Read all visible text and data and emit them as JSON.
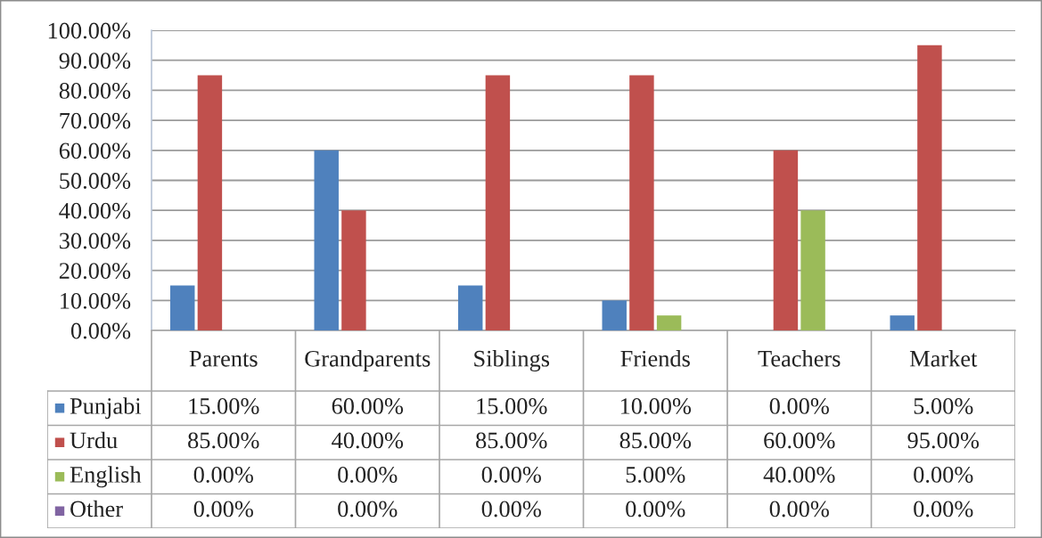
{
  "chart_data": {
    "type": "bar",
    "categories": [
      "Parents",
      "Grandparents",
      "Siblings",
      "Friends",
      "Teachers",
      "Market"
    ],
    "series": [
      {
        "name": "Punjabi",
        "color": "#4f81bd",
        "values": [
          15,
          60,
          15,
          10,
          0,
          5
        ],
        "value_labels": [
          "15.00%",
          "60.00%",
          "15.00%",
          "10.00%",
          "0.00%",
          "5.00%"
        ]
      },
      {
        "name": "Urdu",
        "color": "#c0504d",
        "values": [
          85,
          40,
          85,
          85,
          60,
          95
        ],
        "value_labels": [
          "85.00%",
          "40.00%",
          "85.00%",
          "85.00%",
          "60.00%",
          "95.00%"
        ]
      },
      {
        "name": "English",
        "color": "#9bbb59",
        "values": [
          0,
          0,
          0,
          5,
          40,
          0
        ],
        "value_labels": [
          "0.00%",
          "0.00%",
          "0.00%",
          "5.00%",
          "40.00%",
          "0.00%"
        ]
      },
      {
        "name": "Other",
        "color": "#8064a2",
        "values": [
          0,
          0,
          0,
          0,
          0,
          0
        ],
        "value_labels": [
          "0.00%",
          "0.00%",
          "0.00%",
          "0.00%",
          "0.00%",
          "0.00%"
        ]
      }
    ],
    "ylim": [
      0,
      100
    ],
    "yticks": [
      {
        "value": 0,
        "label": "0.00%"
      },
      {
        "value": 10,
        "label": "10.00%"
      },
      {
        "value": 20,
        "label": "20.00%"
      },
      {
        "value": 30,
        "label": "30.00%"
      },
      {
        "value": 40,
        "label": "40.00%"
      },
      {
        "value": 50,
        "label": "50.00%"
      },
      {
        "value": 60,
        "label": "60.00%"
      },
      {
        "value": 70,
        "label": "70.00%"
      },
      {
        "value": 80,
        "label": "80.00%"
      },
      {
        "value": 90,
        "label": "90.00%"
      },
      {
        "value": 100,
        "label": "100.00%"
      }
    ],
    "grid": "y",
    "legend": "bottom"
  }
}
